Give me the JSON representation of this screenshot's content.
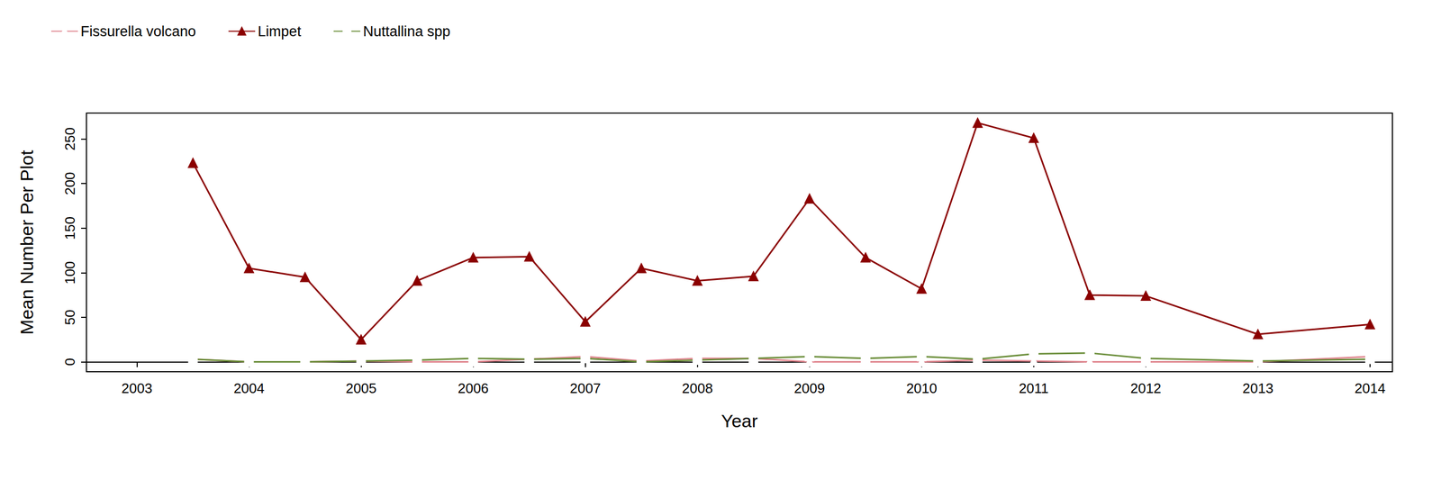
{
  "chart_data": {
    "type": "line",
    "x_label": "Year",
    "y_label": "Mean Number Per Plot",
    "x": [
      2003.5,
      2004,
      2004.5,
      2005,
      2005.5,
      2006,
      2006.5,
      2007,
      2007.5,
      2008,
      2008.5,
      2009,
      2009.5,
      2010,
      2010.5,
      2011,
      2011.5,
      2012,
      2013,
      2014
    ],
    "series": [
      {
        "name": "Fissurella volcano",
        "color": "#e0868f",
        "marker": "open_triangle",
        "values": [
          3,
          0,
          0,
          1,
          0,
          0,
          3,
          6,
          1,
          4,
          4,
          0,
          0,
          0,
          2,
          1,
          0,
          0,
          0,
          6
        ]
      },
      {
        "name": "Limpet",
        "color": "#8b0000",
        "marker": "triangle",
        "values": [
          223,
          105,
          95,
          25,
          91,
          117,
          118,
          45,
          105,
          91,
          96,
          183,
          117,
          82,
          268,
          251,
          75,
          74,
          31,
          42
        ]
      },
      {
        "name": "Nuttallina spp",
        "color": "#6b8e3a",
        "marker": "open_square",
        "values": [
          3,
          0,
          0,
          1,
          2,
          4,
          3,
          4,
          0,
          2,
          4,
          6,
          4,
          6,
          3,
          9,
          10,
          4,
          1,
          3
        ]
      }
    ],
    "xlim": [
      2002.55,
      2014.2
    ],
    "xticks": [
      2003,
      2004,
      2005,
      2006,
      2007,
      2008,
      2009,
      2010,
      2011,
      2012,
      2013,
      2014
    ],
    "ylim": [
      -11,
      279
    ],
    "yticks": [
      0,
      50,
      100,
      150,
      200,
      250
    ],
    "grid": false,
    "legend": "top-left"
  }
}
